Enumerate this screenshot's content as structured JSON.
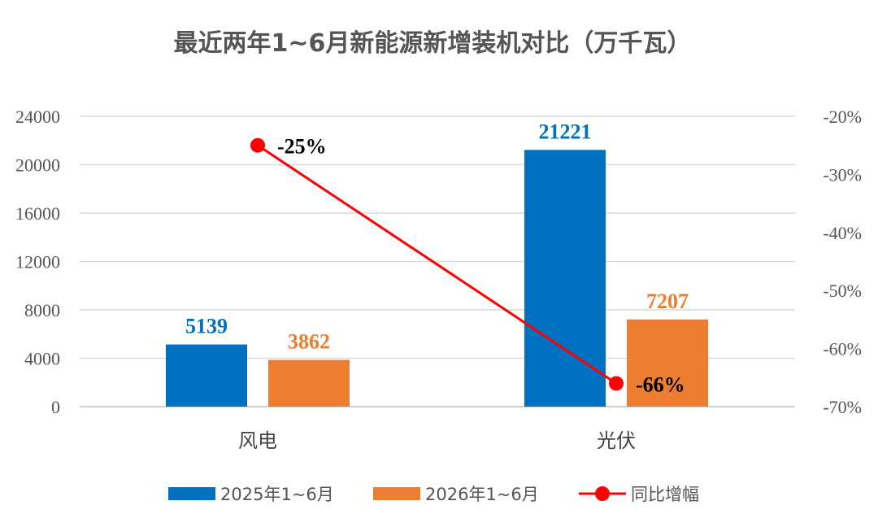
{
  "chart_data": {
    "type": "bar",
    "title": "最近两年1~6月新能源新增装机对比（万千瓦）",
    "categories": [
      "风电",
      "光伏"
    ],
    "series": [
      {
        "name": "2025年1~6月",
        "type": "bar",
        "axis": "left",
        "color": "#0070C0",
        "values": [
          5139,
          21221
        ],
        "labels": [
          "5139",
          "21221"
        ]
      },
      {
        "name": "2026年1~6月",
        "type": "bar",
        "axis": "left",
        "color": "#ED7D31",
        "values": [
          3862,
          7207
        ],
        "labels": [
          "3862",
          "7207"
        ]
      },
      {
        "name": "同比增幅",
        "type": "line",
        "axis": "right",
        "color": "#FF0000",
        "values": [
          -25,
          -66
        ],
        "labels": [
          "-25%",
          "-66%"
        ],
        "label_color": "#000000"
      }
    ],
    "y_left": {
      "min": 0,
      "max": 24000,
      "ticks": [
        0,
        4000,
        8000,
        12000,
        16000,
        20000,
        24000
      ],
      "tick_labels": [
        "0",
        "4000",
        "8000",
        "12000",
        "16000",
        "20000",
        "24000"
      ]
    },
    "y_right": {
      "min": -70,
      "max": -20,
      "ticks": [
        -70,
        -60,
        -50,
        -40,
        -30,
        -20
      ],
      "tick_labels": [
        "-70%",
        "-60%",
        "-50%",
        "-40%",
        "-30%",
        "-20%"
      ]
    },
    "grid": true,
    "legend_position": "bottom"
  }
}
